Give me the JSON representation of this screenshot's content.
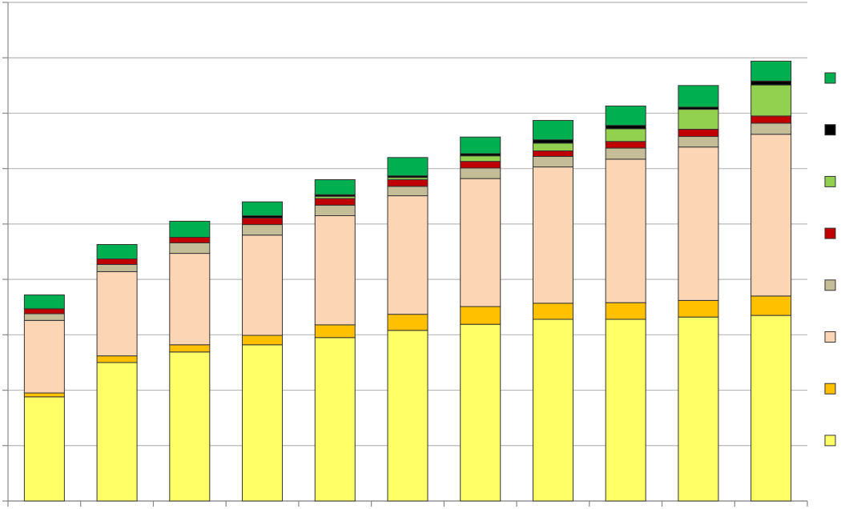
{
  "chart_data": {
    "type": "bar",
    "stacked": true,
    "categories": [
      null,
      null,
      null,
      null,
      null,
      null,
      null,
      null,
      null,
      null,
      null
    ],
    "series": [
      {
        "color": "#ffff66",
        "values": [
          1.88,
          2.5,
          2.69,
          2.82,
          2.95,
          3.08,
          3.19,
          3.28,
          3.28,
          3.32,
          3.35
        ]
      },
      {
        "color": "#ffc000",
        "values": [
          0.07,
          0.12,
          0.13,
          0.17,
          0.23,
          0.29,
          0.32,
          0.29,
          0.3,
          0.3,
          0.35
        ]
      },
      {
        "color": "#fcd5b5",
        "values": [
          1.31,
          1.52,
          1.65,
          1.81,
          1.97,
          2.14,
          2.31,
          2.46,
          2.59,
          2.77,
          2.92
        ]
      },
      {
        "color": "#c4bd97",
        "values": [
          0.12,
          0.13,
          0.19,
          0.19,
          0.19,
          0.17,
          0.19,
          0.19,
          0.2,
          0.19,
          0.2
        ]
      },
      {
        "color": "#c00000",
        "values": [
          0.09,
          0.1,
          0.1,
          0.12,
          0.12,
          0.12,
          0.12,
          0.1,
          0.12,
          0.13,
          0.13
        ]
      },
      {
        "color": "#92d050",
        "values": [
          0,
          0,
          0,
          0,
          0.04,
          0.04,
          0.1,
          0.14,
          0.23,
          0.36,
          0.56
        ]
      },
      {
        "color": "#000000",
        "values": [
          0,
          0,
          0,
          0.04,
          0.03,
          0.03,
          0.04,
          0.06,
          0.06,
          0.04,
          0.07
        ]
      },
      {
        "color": "#00b050",
        "values": [
          0.25,
          0.26,
          0.29,
          0.25,
          0.27,
          0.33,
          0.3,
          0.35,
          0.35,
          0.39,
          0.36
        ]
      }
    ],
    "ylim": [
      0,
      9
    ],
    "yticks": [
      0,
      1,
      2,
      3,
      4,
      5,
      6,
      7,
      8,
      9
    ],
    "grid": true,
    "legend": "right"
  }
}
